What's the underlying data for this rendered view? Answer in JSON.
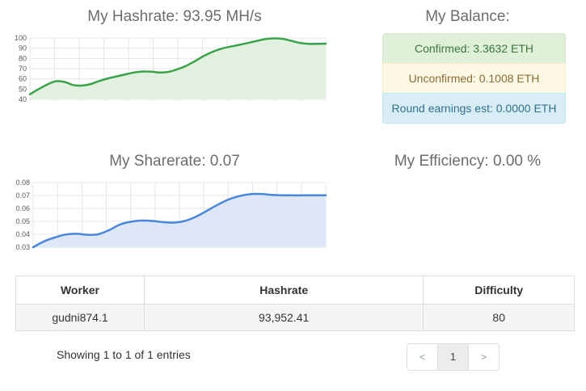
{
  "hashrate": {
    "title": "My Hashrate: 93.95 MH/s"
  },
  "sharerate": {
    "title": "My Sharerate: 0.07"
  },
  "efficiency": {
    "title": "My Efficiency: 0.00 %"
  },
  "balance": {
    "title": "My Balance:",
    "items": [
      {
        "label": "Confirmed: 3.3632 ETH",
        "bg": "#dff0d8",
        "fg": "#3c763d",
        "border": "#d6e9c6"
      },
      {
        "label": "Unconfirmed: 0.1008 ETH",
        "bg": "#fcf8e3",
        "fg": "#8a6d3b",
        "border": "#faebcc"
      },
      {
        "label": "Round earnings est: 0.0000 ETH",
        "bg": "#d9edf7",
        "fg": "#31708f",
        "border": "#bce8f1"
      }
    ]
  },
  "workers_table": {
    "columns": [
      "Worker",
      "Hashrate",
      "Difficulty"
    ],
    "rows": [
      [
        "gudni874.1",
        "93,952.41",
        "80"
      ]
    ]
  },
  "footer": {
    "info": "Showing 1 to 1 of 1 entries",
    "pagination": {
      "prev": "<",
      "pages": [
        "1"
      ],
      "active": "1",
      "next": ">"
    }
  },
  "chart_data": [
    {
      "type": "area",
      "title": "My Hashrate: 93.95 MH/s",
      "current_value": "93.95 MH/s",
      "ylim": [
        40,
        100
      ],
      "yticks": [
        40,
        50,
        60,
        70,
        80,
        90,
        100
      ],
      "tick_decimals": 0,
      "x_axis": {
        "labels": [],
        "vertical_gridlines": 13
      },
      "grid": true,
      "legend": "none",
      "line_color": "#3aa24a",
      "fill_color": "#e2f0e0",
      "values": [
        45,
        50,
        54.5,
        57.8,
        57,
        54,
        53.5,
        55,
        58,
        60.5,
        62.5,
        64.5,
        66.3,
        67.2,
        67,
        66.3,
        67,
        69.5,
        73,
        77.5,
        82.5,
        86.5,
        89.5,
        91.5,
        93.2,
        95,
        97,
        98.8,
        99.6,
        99.2,
        97.3,
        95.3,
        94.3,
        94.2,
        94.5
      ]
    },
    {
      "type": "area",
      "title": "My Sharerate: 0.07",
      "current_value": "0.07",
      "ylim": [
        0.03,
        0.08
      ],
      "yticks": [
        0.03,
        0.04,
        0.05,
        0.06,
        0.07,
        0.08
      ],
      "tick_decimals": 2,
      "x_axis": {
        "labels": [],
        "vertical_gridlines": 13
      },
      "grid": true,
      "legend": "none",
      "line_color": "#4a87d8",
      "fill_color": "#dde7f8",
      "values": [
        0.03,
        0.0345,
        0.0375,
        0.0398,
        0.0404,
        0.0396,
        0.04,
        0.0432,
        0.0475,
        0.0497,
        0.0506,
        0.0503,
        0.0494,
        0.049,
        0.0503,
        0.0535,
        0.058,
        0.0627,
        0.0668,
        0.0695,
        0.071,
        0.0712,
        0.0705,
        0.0702,
        0.0701,
        0.0701,
        0.0701,
        0.0701
      ]
    }
  ]
}
